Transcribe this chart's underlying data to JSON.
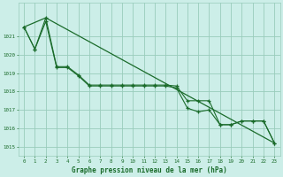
{
  "xlabel": "Graphe pression niveau de la mer (hPa)",
  "xlim": [
    -0.5,
    23.5
  ],
  "ylim": [
    1014.5,
    1022.8
  ],
  "yticks": [
    1015,
    1016,
    1017,
    1018,
    1019,
    1020,
    1021
  ],
  "xticks": [
    0,
    1,
    2,
    3,
    4,
    5,
    6,
    7,
    8,
    9,
    10,
    11,
    12,
    13,
    14,
    15,
    16,
    17,
    18,
    19,
    20,
    21,
    22,
    23
  ],
  "background_color": "#cceee8",
  "grid_color": "#99ccbb",
  "line_color": "#1a6b2a",
  "series1": [
    1021.5,
    1020.3,
    1022.0,
    1019.35,
    1019.35,
    1018.9,
    1018.35,
    1018.35,
    1018.35,
    1018.35,
    1018.35,
    1018.35,
    1018.35,
    1018.35,
    1018.3,
    1017.5,
    1017.5,
    1017.5,
    1016.2,
    1016.2,
    1016.4,
    1016.4,
    1016.4,
    1015.2
  ],
  "series2": [
    1021.5,
    1020.3,
    1021.8,
    1019.3,
    1019.3,
    1018.85,
    1018.3,
    1018.3,
    1018.3,
    1018.3,
    1018.3,
    1018.3,
    1018.3,
    1018.3,
    1018.2,
    1017.1,
    1016.9,
    1017.0,
    1016.2,
    1016.2,
    1016.4,
    1016.4,
    1016.4,
    1015.2
  ],
  "line3_x": [
    0,
    2,
    23
  ],
  "line3_y": [
    1021.5,
    1022.0,
    1015.2
  ]
}
